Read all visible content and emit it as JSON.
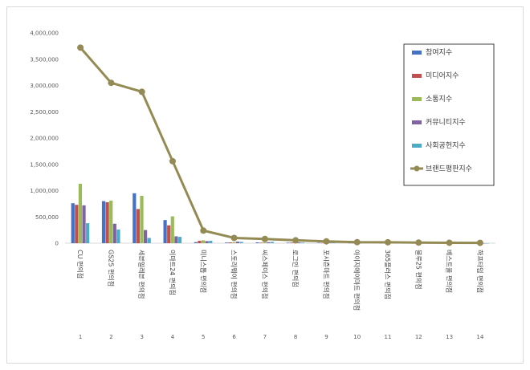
{
  "chart_data": {
    "type": "bar",
    "title": "",
    "xlabel": "",
    "ylabel": "",
    "ylim": [
      0,
      4000000
    ],
    "yticks": [
      "0",
      "500,000",
      "1,000,000",
      "1,500,000",
      "2,000,000",
      "2,500,000",
      "3,000,000",
      "3,500,000",
      "4,000,000"
    ],
    "categories": [
      "CU 편의점",
      "GS25 편의점",
      "세븐일레븐 편의점",
      "이마트24 편의점",
      "미니스톱 편의점",
      "스토리웨이 편의점",
      "씨스페이스 편의점",
      "로그인 편의점",
      "포시즌마트 편의점",
      "아이지에이마트 편의점",
      "365플러스 편의점",
      "블루25 편의점",
      "베스트올 편의점",
      "하프타임 편의점"
    ],
    "indices": [
      "1",
      "2",
      "3",
      "4",
      "5",
      "6",
      "7",
      "8",
      "9",
      "10",
      "11",
      "12",
      "13",
      "14"
    ],
    "legend_position": "right",
    "grid": false,
    "series": [
      {
        "name": "참여지수",
        "color": "#4472c4",
        "values": [
          760000,
          800000,
          950000,
          440000,
          20000,
          12000,
          15000,
          10000,
          8000,
          5000,
          4000,
          3000,
          2000,
          1000
        ]
      },
      {
        "name": "미디어지수",
        "color": "#c0504d",
        "values": [
          730000,
          780000,
          650000,
          340000,
          45000,
          15000,
          10000,
          12000,
          6000,
          4000,
          3000,
          2000,
          1500,
          1000
        ]
      },
      {
        "name": "소통지수",
        "color": "#9bbb59",
        "values": [
          1130000,
          810000,
          900000,
          510000,
          55000,
          20000,
          18000,
          14000,
          9000,
          6000,
          5000,
          3000,
          2000,
          1500
        ]
      },
      {
        "name": "커뮤니티지수",
        "color": "#8064a2",
        "values": [
          720000,
          370000,
          250000,
          130000,
          40000,
          30000,
          20000,
          15000,
          7000,
          5000,
          4000,
          2500,
          1500,
          1000
        ]
      },
      {
        "name": "사회공헌지수",
        "color": "#4bacc6",
        "values": [
          380000,
          260000,
          100000,
          120000,
          45000,
          25000,
          25000,
          12000,
          10000,
          6000,
          5000,
          3000,
          2000,
          1500
        ]
      }
    ],
    "line_series": {
      "name": "브랜드평판지수",
      "color": "#948a54",
      "values": [
        3720000,
        3050000,
        2880000,
        1560000,
        240000,
        100000,
        80000,
        55000,
        35000,
        20000,
        18000,
        12000,
        8000,
        6000
      ]
    }
  }
}
